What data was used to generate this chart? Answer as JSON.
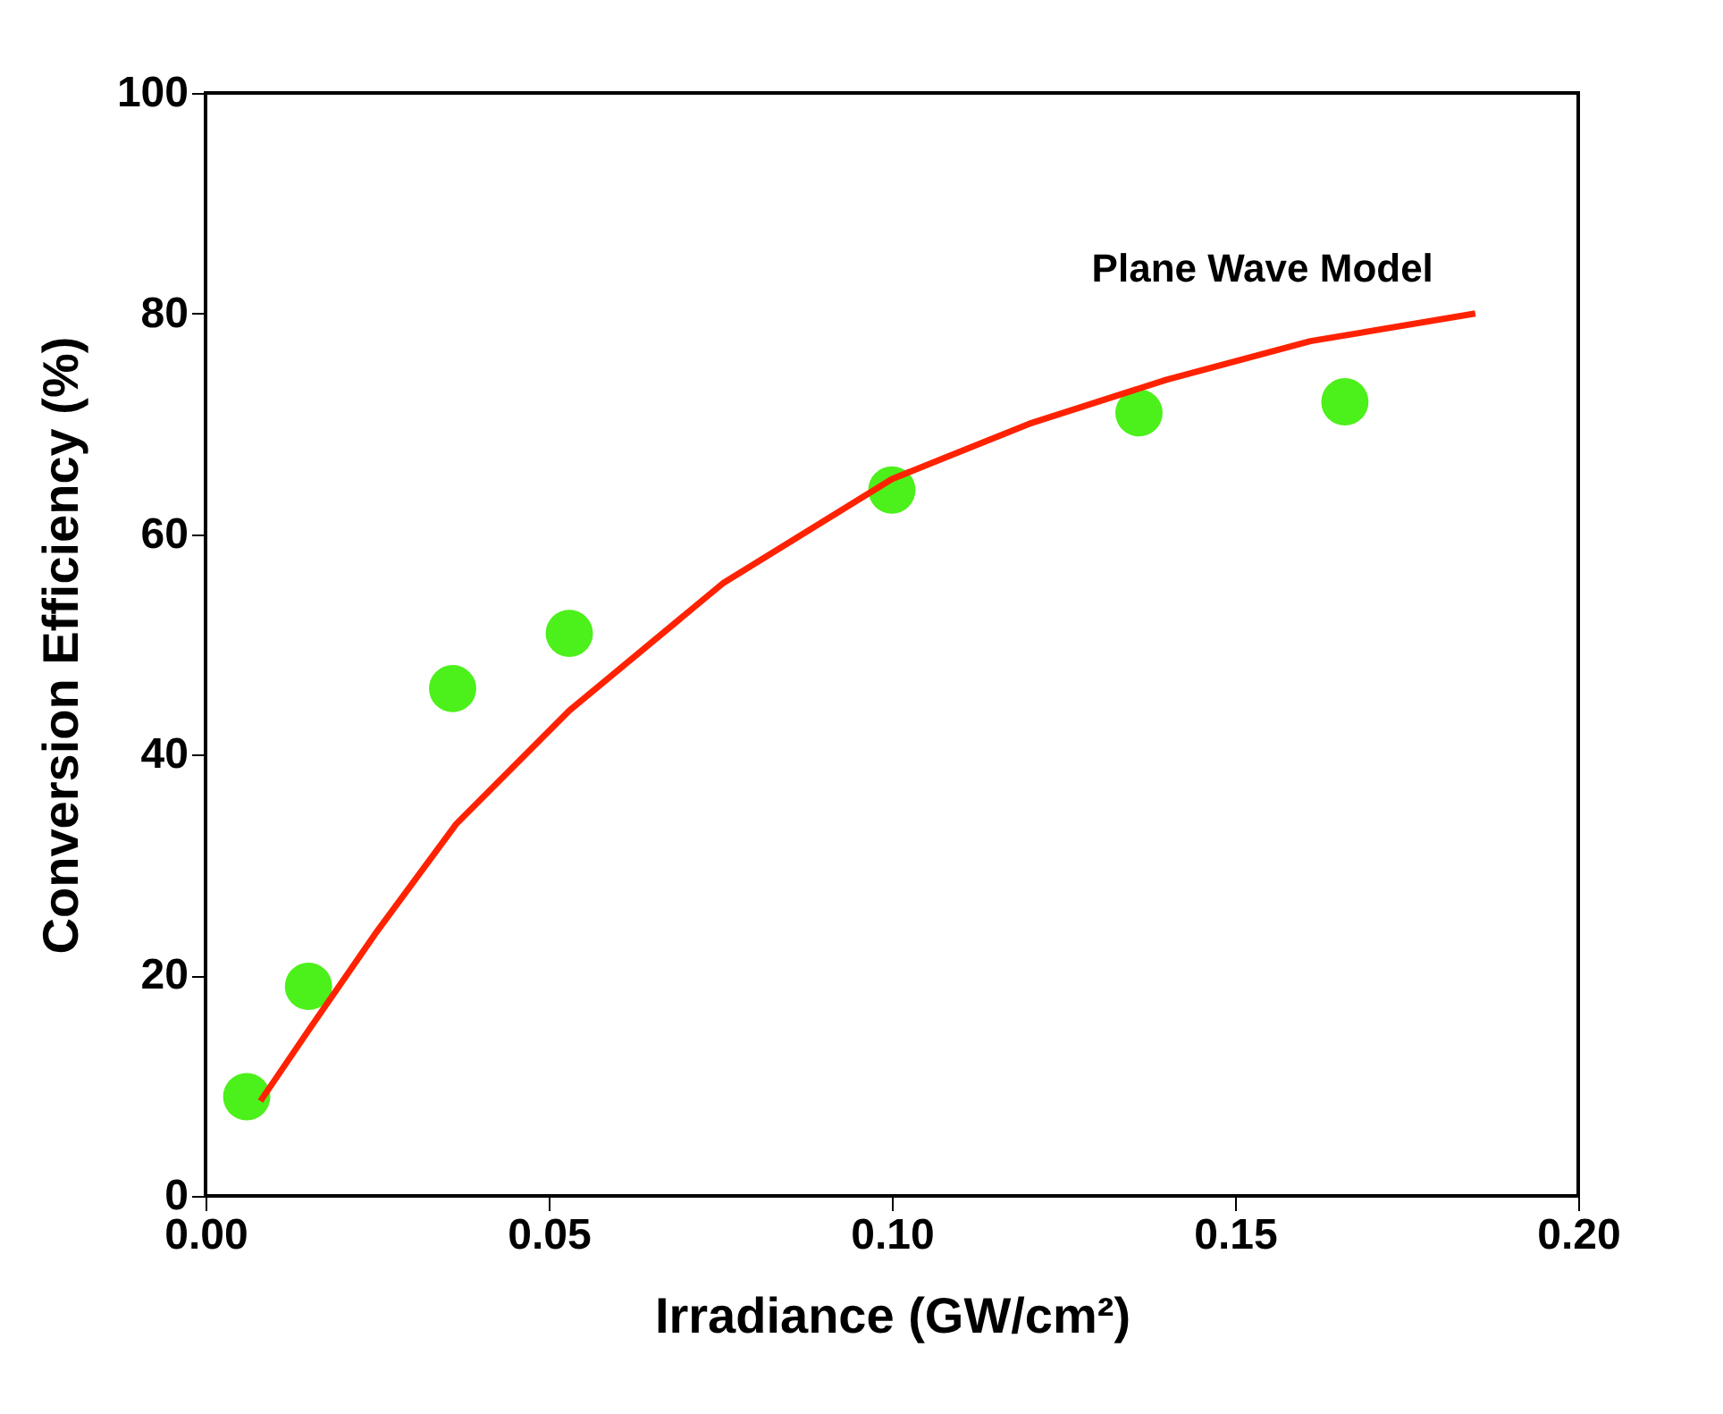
{
  "chart_data": {
    "type": "scatter",
    "xlabel": "Irradiance (GW/cm²)",
    "ylabel": "Conversion Efficiency (%)",
    "xlim": [
      0,
      0.2
    ],
    "ylim": [
      0,
      100
    ],
    "xticks": [
      {
        "value": 0,
        "label": "0.00"
      },
      {
        "value": 0.05,
        "label": "0.05"
      },
      {
        "value": 0.1,
        "label": "0.10"
      },
      {
        "value": 0.15,
        "label": "0.15"
      },
      {
        "value": 0.2,
        "label": "0.20"
      }
    ],
    "yticks": [
      0,
      20,
      40,
      60,
      80,
      100
    ],
    "grid": false,
    "series": [
      {
        "marker": "circle",
        "color": "#4cf01a",
        "x": [
          0.006,
          0.015,
          0.036,
          0.053,
          0.1,
          0.136,
          0.166
        ],
        "values": [
          9,
          19,
          46,
          51,
          64,
          71,
          72
        ]
      },
      {
        "type": "line",
        "color": "#ff2200",
        "line_style": "solid",
        "x": [
          0.008,
          0.015,
          0.025,
          0.0365,
          0.053,
          0.0755,
          0.1,
          0.12,
          0.14,
          0.161,
          0.185
        ],
        "values": [
          8.6,
          15,
          24,
          33.7,
          44,
          55.6,
          65,
          70,
          74,
          77.5,
          80
        ]
      }
    ],
    "annotations": [
      "Plane Wave Model"
    ]
  }
}
